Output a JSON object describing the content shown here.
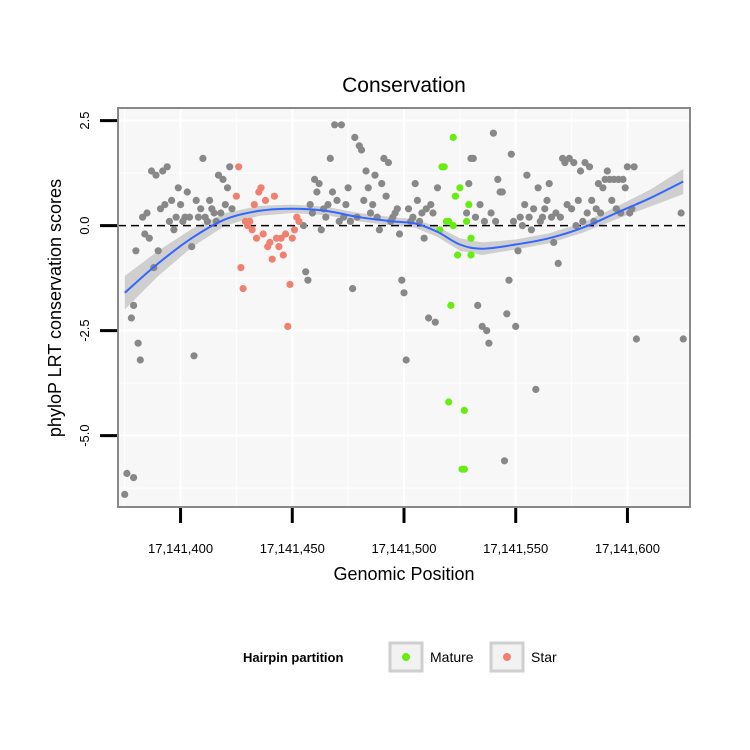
{
  "chart_data": {
    "type": "scatter",
    "title": "Conservation",
    "xlabel": "Genomic Position",
    "ylabel": "phyloP LRT conservation scores",
    "xlim": [
      17141372,
      17141628
    ],
    "ylim": [
      -6.7,
      2.8
    ],
    "x_ticks": [
      17141400,
      17141450,
      17141500,
      17141550,
      17141600
    ],
    "x_tick_labels": [
      "17,141,400",
      "17,141,450",
      "17,141,500",
      "17,141,550",
      "17,141,600"
    ],
    "y_ticks": [
      2.5,
      0.0,
      -2.5,
      -5.0
    ],
    "y_tick_labels": [
      "2.5",
      "0.0",
      "-2.5",
      "-5.0"
    ],
    "reference_line": {
      "y": 0,
      "style": "dashed",
      "color": "#000000"
    },
    "legend": {
      "title": "Hairpin partition",
      "position": "bottom",
      "entries": [
        {
          "name": "Mature",
          "color": "#66ee11"
        },
        {
          "name": "Star",
          "color": "#f08070"
        }
      ]
    },
    "colors": {
      "background": "#f7f7f7",
      "grid": "#ffffff",
      "frame": "#888888",
      "other": "#888888",
      "mature": "#66ee11",
      "star": "#f08070",
      "smooth_line": "#3366ff",
      "band": "#c8c8c8"
    },
    "series": [
      {
        "name": "Other",
        "color": "#888888",
        "points": [
          [
            17141375,
            -6.4
          ],
          [
            17141376,
            -5.9
          ],
          [
            17141378,
            -2.2
          ],
          [
            17141379,
            -1.9
          ],
          [
            17141379,
            -6.0
          ],
          [
            17141380,
            -0.6
          ],
          [
            17141381,
            -2.8
          ],
          [
            17141382,
            -3.2
          ],
          [
            17141383,
            0.2
          ],
          [
            17141384,
            -0.2
          ],
          [
            17141385,
            0.3
          ],
          [
            17141386,
            -0.3
          ],
          [
            17141387,
            1.3
          ],
          [
            17141388,
            -1.0
          ],
          [
            17141389,
            1.2
          ],
          [
            17141390,
            -0.6
          ],
          [
            17141391,
            0.4
          ],
          [
            17141392,
            1.3
          ],
          [
            17141393,
            0.5
          ],
          [
            17141394,
            1.4
          ],
          [
            17141395,
            0.1
          ],
          [
            17141396,
            0.6
          ],
          [
            17141397,
            -0.1
          ],
          [
            17141398,
            0.2
          ],
          [
            17141399,
            0.9
          ],
          [
            17141400,
            0.5
          ],
          [
            17141401,
            0.1
          ],
          [
            17141402,
            0.2
          ],
          [
            17141403,
            0.8
          ],
          [
            17141404,
            0.2
          ],
          [
            17141405,
            -0.5
          ],
          [
            17141406,
            -3.1
          ],
          [
            17141407,
            0.6
          ],
          [
            17141408,
            0.2
          ],
          [
            17141409,
            0.4
          ],
          [
            17141410,
            1.6
          ],
          [
            17141411,
            0.2
          ],
          [
            17141412,
            0.1
          ],
          [
            17141413,
            0.6
          ],
          [
            17141414,
            0.4
          ],
          [
            17141415,
            0.3
          ],
          [
            17141416,
            0.1
          ],
          [
            17141417,
            1.2
          ],
          [
            17141418,
            0.3
          ],
          [
            17141419,
            1.1
          ],
          [
            17141420,
            0.5
          ],
          [
            17141421,
            0.9
          ],
          [
            17141422,
            1.4
          ],
          [
            17141423,
            0.4
          ],
          [
            17141455,
            0.0
          ],
          [
            17141456,
            -1.1
          ],
          [
            17141457,
            -1.3
          ],
          [
            17141458,
            0.5
          ],
          [
            17141459,
            0.3
          ],
          [
            17141460,
            1.1
          ],
          [
            17141461,
            0.8
          ],
          [
            17141462,
            1.0
          ],
          [
            17141463,
            -0.1
          ],
          [
            17141464,
            0.4
          ],
          [
            17141465,
            0.2
          ],
          [
            17141466,
            0.5
          ],
          [
            17141467,
            1.6
          ],
          [
            17141468,
            0.8
          ],
          [
            17141469,
            2.4
          ],
          [
            17141470,
            0.6
          ],
          [
            17141471,
            0.1
          ],
          [
            17141472,
            2.4
          ],
          [
            17141473,
            0.2
          ],
          [
            17141474,
            0.5
          ],
          [
            17141475,
            0.9
          ],
          [
            17141476,
            0.1
          ],
          [
            17141477,
            -1.5
          ],
          [
            17141478,
            2.1
          ],
          [
            17141479,
            0.2
          ],
          [
            17141480,
            1.9
          ],
          [
            17141481,
            1.8
          ],
          [
            17141482,
            0.6
          ],
          [
            17141483,
            1.3
          ],
          [
            17141484,
            0.9
          ],
          [
            17141485,
            0.3
          ],
          [
            17141486,
            0.5
          ],
          [
            17141487,
            1.2
          ],
          [
            17141488,
            0.2
          ],
          [
            17141489,
            -0.1
          ],
          [
            17141490,
            1.0
          ],
          [
            17141491,
            1.6
          ],
          [
            17141492,
            0.7
          ],
          [
            17141493,
            1.5
          ],
          [
            17141494,
            0.1
          ],
          [
            17141495,
            0.2
          ],
          [
            17141496,
            0.3
          ],
          [
            17141497,
            0.4
          ],
          [
            17141498,
            -0.2
          ],
          [
            17141499,
            -1.3
          ],
          [
            17141500,
            -1.6
          ],
          [
            17141501,
            -3.2
          ],
          [
            17141502,
            0.4
          ],
          [
            17141503,
            0.1
          ],
          [
            17141504,
            0.2
          ],
          [
            17141505,
            1.0
          ],
          [
            17141506,
            0.6
          ],
          [
            17141507,
            0.1
          ],
          [
            17141508,
            0.3
          ],
          [
            17141509,
            -0.3
          ],
          [
            17141510,
            0.4
          ],
          [
            17141511,
            -2.2
          ],
          [
            17141512,
            0.5
          ],
          [
            17141513,
            0.3
          ],
          [
            17141514,
            -2.3
          ],
          [
            17141515,
            0.9
          ],
          [
            17141528,
            0.3
          ],
          [
            17141529,
            1.0
          ],
          [
            17141530,
            1.6
          ],
          [
            17141531,
            1.6
          ],
          [
            17141532,
            0.2
          ],
          [
            17141533,
            -1.9
          ],
          [
            17141534,
            0.5
          ],
          [
            17141535,
            -2.4
          ],
          [
            17141536,
            0.1
          ],
          [
            17141537,
            -2.5
          ],
          [
            17141538,
            -2.8
          ],
          [
            17141539,
            0.3
          ],
          [
            17141540,
            2.2
          ],
          [
            17141541,
            0.1
          ],
          [
            17141542,
            1.1
          ],
          [
            17141543,
            0.8
          ],
          [
            17141544,
            0.8
          ],
          [
            17141545,
            -5.6
          ],
          [
            17141546,
            -2.1
          ],
          [
            17141547,
            -1.3
          ],
          [
            17141548,
            1.7
          ],
          [
            17141549,
            0.1
          ],
          [
            17141550,
            -2.4
          ],
          [
            17141551,
            -0.6
          ],
          [
            17141552,
            0.2
          ],
          [
            17141553,
            0.0
          ],
          [
            17141554,
            0.5
          ],
          [
            17141555,
            1.2
          ],
          [
            17141556,
            0.2
          ],
          [
            17141557,
            -0.1
          ],
          [
            17141558,
            0.4
          ],
          [
            17141559,
            -3.9
          ],
          [
            17141560,
            0.9
          ],
          [
            17141561,
            0.1
          ],
          [
            17141562,
            0.2
          ],
          [
            17141563,
            0.4
          ],
          [
            17141564,
            0.6
          ],
          [
            17141565,
            1.0
          ],
          [
            17141566,
            0.2
          ],
          [
            17141567,
            -0.4
          ],
          [
            17141568,
            0.3
          ],
          [
            17141569,
            -0.9
          ],
          [
            17141570,
            0.2
          ],
          [
            17141571,
            1.6
          ],
          [
            17141572,
            1.5
          ],
          [
            17141573,
            0.5
          ],
          [
            17141574,
            1.6
          ],
          [
            17141575,
            0.4
          ],
          [
            17141576,
            1.5
          ],
          [
            17141577,
            0.0
          ],
          [
            17141578,
            0.6
          ],
          [
            17141579,
            1.3
          ],
          [
            17141580,
            0.1
          ],
          [
            17141581,
            1.5
          ],
          [
            17141582,
            0.3
          ],
          [
            17141583,
            1.4
          ],
          [
            17141584,
            0.6
          ],
          [
            17141585,
            0.1
          ],
          [
            17141586,
            0.4
          ],
          [
            17141587,
            1.0
          ],
          [
            17141588,
            0.3
          ],
          [
            17141589,
            0.9
          ],
          [
            17141590,
            1.1
          ],
          [
            17141591,
            1.3
          ],
          [
            17141592,
            1.1
          ],
          [
            17141593,
            0.6
          ],
          [
            17141594,
            1.1
          ],
          [
            17141595,
            0.4
          ],
          [
            17141596,
            1.1
          ],
          [
            17141597,
            0.3
          ],
          [
            17141598,
            1.1
          ],
          [
            17141599,
            0.9
          ],
          [
            17141600,
            1.4
          ],
          [
            17141601,
            0.3
          ],
          [
            17141602,
            0.4
          ],
          [
            17141603,
            1.4
          ],
          [
            17141604,
            -2.7
          ],
          [
            17141624,
            0.3
          ],
          [
            17141625,
            -2.7
          ]
        ]
      },
      {
        "name": "Mature",
        "color": "#66ee11",
        "points": [
          [
            17141516,
            -0.1
          ],
          [
            17141517,
            1.4
          ],
          [
            17141518,
            1.4
          ],
          [
            17141519,
            0.1
          ],
          [
            17141520,
            0.1
          ],
          [
            17141520,
            -4.2
          ],
          [
            17141521,
            -1.9
          ],
          [
            17141522,
            0.0
          ],
          [
            17141522,
            2.1
          ],
          [
            17141523,
            0.7
          ],
          [
            17141524,
            -0.7
          ],
          [
            17141525,
            0.9
          ],
          [
            17141526,
            -5.8
          ],
          [
            17141527,
            -4.4
          ],
          [
            17141527,
            -5.8
          ],
          [
            17141528,
            0.1
          ],
          [
            17141529,
            0.5
          ],
          [
            17141530,
            -0.7
          ],
          [
            17141530,
            -0.3
          ]
        ]
      },
      {
        "name": "Star",
        "color": "#f08070",
        "points": [
          [
            17141425,
            0.7
          ],
          [
            17141426,
            1.4
          ],
          [
            17141427,
            -1.0
          ],
          [
            17141428,
            -1.5
          ],
          [
            17141429,
            0.1
          ],
          [
            17141430,
            0.0
          ],
          [
            17141431,
            0.1
          ],
          [
            17141432,
            -0.1
          ],
          [
            17141433,
            0.5
          ],
          [
            17141434,
            -0.3
          ],
          [
            17141435,
            0.8
          ],
          [
            17141436,
            0.9
          ],
          [
            17141437,
            -0.2
          ],
          [
            17141438,
            0.6
          ],
          [
            17141439,
            -0.5
          ],
          [
            17141440,
            -0.4
          ],
          [
            17141441,
            -0.8
          ],
          [
            17141442,
            0.7
          ],
          [
            17141443,
            -0.3
          ],
          [
            17141444,
            -0.5
          ],
          [
            17141445,
            -0.3
          ],
          [
            17141446,
            -0.7
          ],
          [
            17141447,
            -0.2
          ],
          [
            17141448,
            -2.4
          ],
          [
            17141449,
            -1.4
          ],
          [
            17141450,
            -0.3
          ],
          [
            17141451,
            -0.1
          ],
          [
            17141452,
            0.2
          ],
          [
            17141453,
            0.1
          ]
        ]
      },
      {
        "name": "Smooth",
        "color": "#3366ff",
        "x": [
          17141375,
          17141390,
          17141405,
          17141420,
          17141435,
          17141450,
          17141465,
          17141480,
          17141495,
          17141505,
          17141515,
          17141525,
          17141535,
          17141550,
          17141565,
          17141580,
          17141595,
          17141610,
          17141625
        ],
        "y": [
          -1.6,
          -0.9,
          -0.3,
          0.15,
          0.35,
          0.4,
          0.35,
          0.2,
          0.1,
          0.05,
          -0.15,
          -0.45,
          -0.55,
          -0.45,
          -0.3,
          -0.05,
          0.3,
          0.65,
          1.05
        ],
        "band_half_width": [
          0.4,
          0.3,
          0.22,
          0.15,
          0.12,
          0.1,
          0.1,
          0.1,
          0.1,
          0.1,
          0.12,
          0.15,
          0.15,
          0.12,
          0.12,
          0.12,
          0.15,
          0.2,
          0.3
        ]
      }
    ]
  }
}
